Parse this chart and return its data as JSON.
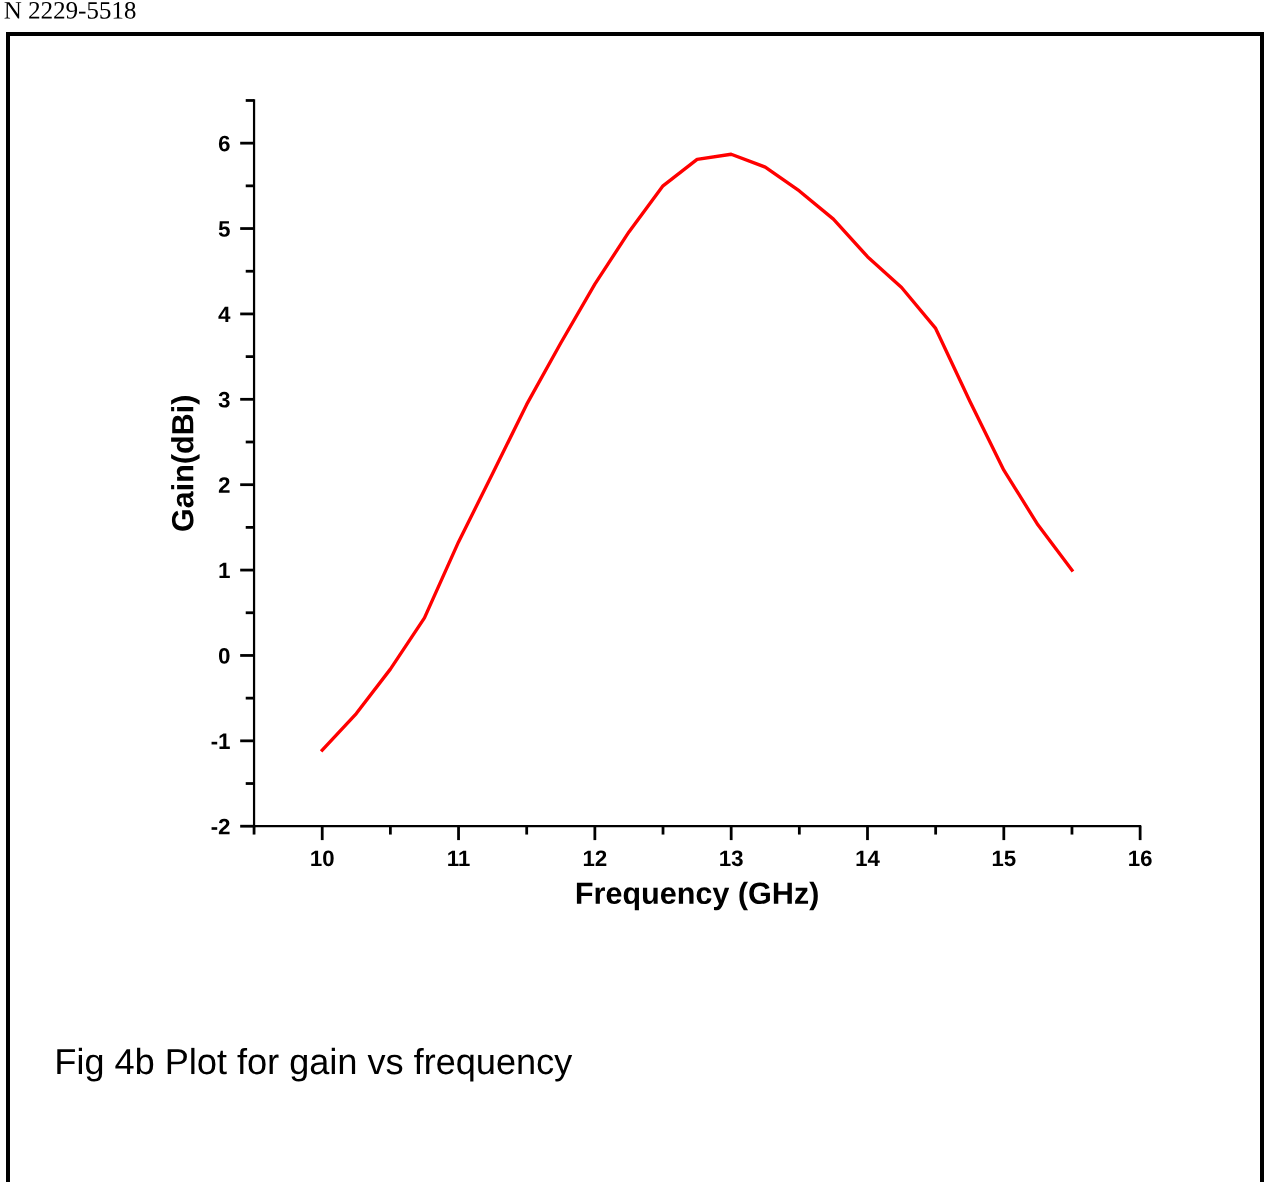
{
  "chart_data": {
    "type": "line",
    "xlabel": "Frequency (GHz)",
    "ylabel": "Gain(dBi)",
    "annotations": [
      "N 2229-5518",
      "Fig 4b Plot for gain vs frequency"
    ],
    "x": [
      10,
      10.25,
      10.5,
      10.75,
      11,
      11.25,
      11.5,
      11.75,
      12,
      12.25,
      12.5,
      12.75,
      13,
      13.25,
      13.5,
      13.75,
      14,
      14.25,
      14.5,
      14.75,
      15,
      15.25,
      15.5
    ],
    "series": [
      {
        "color": "#ff0000",
        "values": [
          -1.11,
          -0.68,
          -0.16,
          0.44,
          1.33,
          2.13,
          2.94,
          3.66,
          4.35,
          4.96,
          5.5,
          5.81,
          5.87,
          5.72,
          5.44,
          5.11,
          4.67,
          4.31,
          3.83,
          2.98,
          2.17,
          1.53,
          1.0
        ]
      }
    ],
    "xlim": [
      9.5,
      16
    ],
    "ylim": [
      -2,
      6.5
    ],
    "xticks": [
      {
        "value": 9.5,
        "label": null
      },
      10,
      {
        "value": 10.5,
        "label": null
      },
      11,
      {
        "value": 11.5,
        "label": null
      },
      12,
      {
        "value": 12.5,
        "label": null
      },
      13,
      {
        "value": 13.5,
        "label": null
      },
      14,
      {
        "value": 14.5,
        "label": null
      },
      15,
      {
        "value": 15.5,
        "label": null
      },
      16
    ],
    "yticks": [
      -2,
      {
        "value": -1.5,
        "label": null
      },
      -1,
      {
        "value": -0.5,
        "label": null
      },
      0,
      {
        "value": 0.5,
        "label": null
      },
      1,
      {
        "value": 1.5,
        "label": null
      },
      2,
      {
        "value": 2.5,
        "label": null
      },
      3,
      {
        "value": 3.5,
        "label": null
      },
      4,
      {
        "value": 4.5,
        "label": null
      },
      5,
      {
        "value": 5.5,
        "label": null
      },
      6,
      {
        "value": 6.5,
        "label": null
      }
    ],
    "grid": false,
    "legend": false,
    "marker": "none",
    "line_style": "solid"
  }
}
